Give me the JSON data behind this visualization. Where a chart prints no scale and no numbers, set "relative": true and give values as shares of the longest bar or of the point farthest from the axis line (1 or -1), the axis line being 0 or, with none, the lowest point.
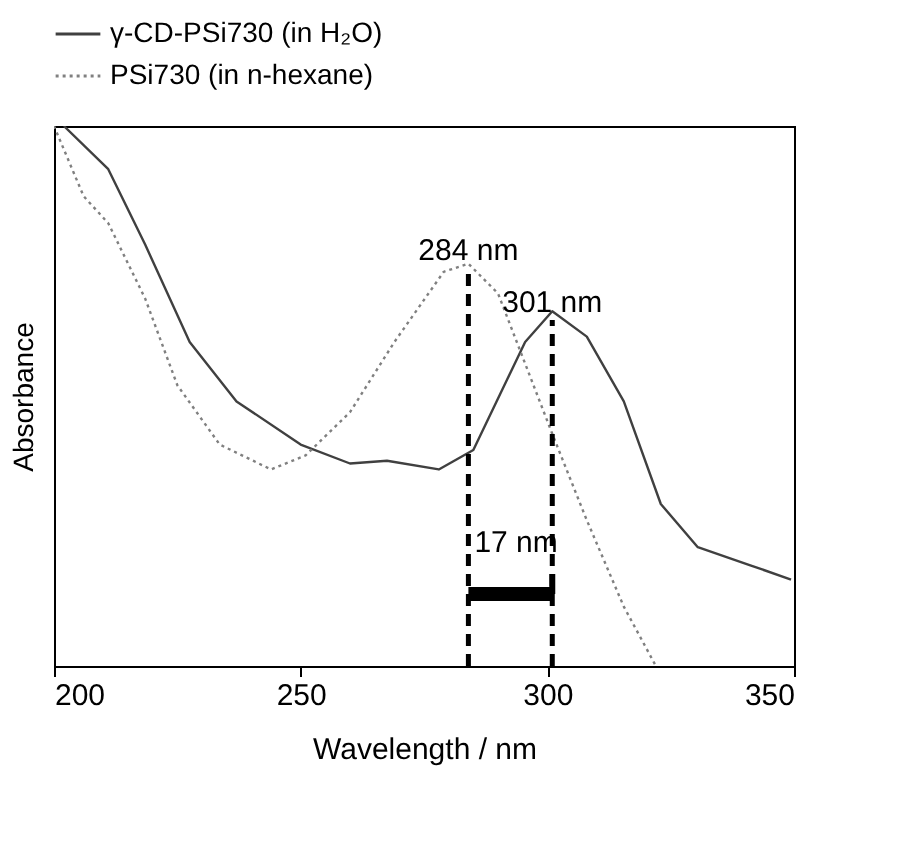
{
  "chart_data": {
    "type": "line",
    "relative": true,
    "xlabel": "Wavelength / nm",
    "ylabel": "Absorbance",
    "xlim": [
      200,
      350
    ],
    "xticks": [
      200,
      250,
      300,
      350
    ],
    "grid": false,
    "legend": "top",
    "tick_labels": "x",
    "series": [
      {
        "name": "γ-CD-PSi730 (in H₂O)",
        "color": "#404040",
        "line_style": "solid",
        "x": [
          202,
          211,
          218.5,
          227.5,
          237,
          250,
          260,
          267.5,
          278,
          285,
          295.5,
          301,
          308,
          315.5,
          323,
          330.5,
          341,
          349.4
        ],
        "values": [
          1.0,
          0.92,
          0.78,
          0.6,
          0.49,
          0.41,
          0.375,
          0.38,
          0.364,
          0.4,
          0.6,
          0.657,
          0.61,
          0.49,
          0.3,
          0.22,
          0.187,
          0.16
        ]
      },
      {
        "name": "PSi730 (in n-hexane)",
        "color": "#808080",
        "line_style": "dotted",
        "x": [
          200,
          206,
          211,
          218.5,
          225,
          233.6,
          244,
          251,
          260,
          269,
          279,
          284,
          290,
          301,
          308,
          315.5,
          322
        ],
        "values": [
          1.0,
          0.87,
          0.82,
          0.68,
          0.52,
          0.41,
          0.364,
          0.39,
          0.47,
          0.6,
          0.73,
          0.745,
          0.69,
          0.43,
          0.27,
          0.11,
          0.0
        ]
      }
    ],
    "ref_lines": [
      {
        "axis": "x",
        "value": 284,
        "label": "284 nm",
        "color": "#000000",
        "line_style": "dashed"
      },
      {
        "axis": "x",
        "value": 301,
        "label": "301 nm",
        "color": "#000000",
        "line_style": "dashed"
      }
    ],
    "annotations": [
      "17 nm"
    ]
  }
}
